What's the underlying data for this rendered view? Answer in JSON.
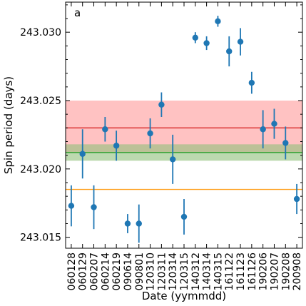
{
  "chart_data": {
    "type": "scatter",
    "panel_label": "a",
    "xlabel": "Date (yymmdd)",
    "ylabel": "Spin period (days)",
    "ylim": [
      243.0142,
      243.0322
    ],
    "yticks": [
      "243.015",
      "243.020",
      "243.025",
      "243.030"
    ],
    "categories": [
      "060128",
      "060129",
      "060207",
      "060214",
      "060219",
      "090614",
      "090801",
      "120310",
      "120311",
      "120314",
      "120315",
      "140312",
      "140314",
      "140315",
      "161122",
      "161123",
      "161126",
      "190206",
      "190207",
      "190208",
      "200908"
    ],
    "points": [
      {
        "y": 243.0173,
        "err": 0.0015
      },
      {
        "y": 243.0211,
        "err": 0.0018
      },
      {
        "y": 243.0172,
        "err": 0.0016
      },
      {
        "y": 243.0229,
        "err": 0.0009
      },
      {
        "y": 243.0217,
        "err": 0.0011
      },
      {
        "y": 243.016,
        "err": 0.0007
      },
      {
        "y": 243.016,
        "err": 0.0014
      },
      {
        "y": 243.0226,
        "err": 0.0011
      },
      {
        "y": 243.0247,
        "err": 0.0009
      },
      {
        "y": 243.0207,
        "err": 0.0018
      },
      {
        "y": 243.0165,
        "err": 0.0013
      },
      {
        "y": 243.0296,
        "err": 0.0004
      },
      {
        "y": 243.0292,
        "err": 0.0005
      },
      {
        "y": 243.0308,
        "err": 0.0004
      },
      {
        "y": 243.0286,
        "err": 0.0011
      },
      {
        "y": 243.0293,
        "err": 0.001
      },
      {
        "y": 243.0263,
        "err": 0.0008
      },
      {
        "y": 243.0229,
        "err": 0.0014
      },
      {
        "y": 243.0233,
        "err": 0.0011
      },
      {
        "y": 243.0219,
        "err": 0.0012
      },
      {
        "y": 243.0178,
        "err": 0.0011
      }
    ],
    "marker_color": "#1f77b4",
    "reference_lines": [
      {
        "value": 243.023,
        "color": "#d62728",
        "band": [
          243.0212,
          243.025
        ],
        "band_color": "#ff9999"
      },
      {
        "value": 243.0212,
        "color": "#2ca02c",
        "band": [
          243.0206,
          243.0218
        ],
        "band_color": "#8fbf7a"
      },
      {
        "value": 243.0185,
        "color": "#ff9f1a"
      }
    ],
    "grid": false,
    "legend": "none"
  }
}
